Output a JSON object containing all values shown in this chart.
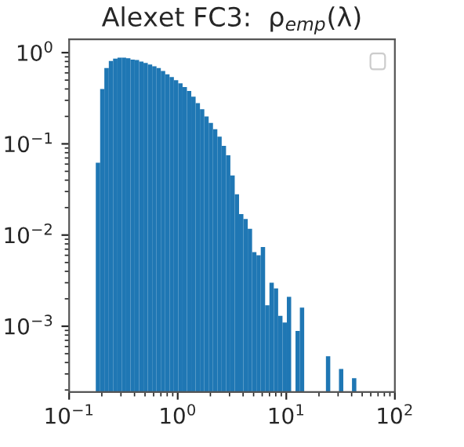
{
  "chart_data": {
    "type": "histogram",
    "title": "Alexet FC3:  ρ$_{emp}$(λ)",
    "bins": [
      0.176,
      0.193,
      0.211,
      0.232,
      0.254,
      0.279,
      0.305,
      0.335,
      0.367,
      0.402,
      0.441,
      0.484,
      0.53,
      0.582,
      0.638,
      0.699,
      0.767,
      0.841,
      0.922,
      1.011,
      1.109,
      1.216,
      1.333,
      1.462,
      1.603,
      1.758,
      1.928,
      2.113,
      2.317,
      2.541,
      2.786,
      3.055,
      3.35,
      3.673,
      4.027,
      4.416,
      4.842,
      5.309,
      5.821,
      6.383,
      6.998,
      7.674,
      8.414,
      9.226,
      10.12,
      11.09,
      12.16,
      13.34,
      14.62,
      16.03,
      17.58,
      19.28,
      21.14,
      23.18,
      25.41,
      27.87,
      30.56,
      33.51,
      36.74,
      40.28,
      44.17
    ],
    "values": [
      0.062,
      0.4,
      0.68,
      0.81,
      0.86,
      0.88,
      0.88,
      0.87,
      0.84,
      0.83,
      0.8,
      0.77,
      0.74,
      0.71,
      0.68,
      0.63,
      0.58,
      0.54,
      0.5,
      0.46,
      0.42,
      0.38,
      0.33,
      0.28,
      0.24,
      0.2,
      0.17,
      0.145,
      0.12,
      0.095,
      0.075,
      0.045,
      0.028,
      0.017,
      0.015,
      0.0117,
      0.0065,
      0.006,
      0.0074,
      0.0017,
      0.003,
      0.0026,
      0.0013,
      0.0011,
      0.0021,
      null,
      0.00089,
      0.0016,
      null,
      null,
      null,
      null,
      null,
      0.00047,
      null,
      null,
      0.00034,
      null,
      null,
      0.00027
    ],
    "color": "#1f77b4",
    "log": "xy",
    "xlim": [
      0.1,
      100
    ],
    "xticks": [
      {
        "value": 0.1,
        "label": "10$^{−1}$"
      },
      {
        "value": 1,
        "label": "10$^{0}$"
      },
      {
        "value": 10,
        "label": "10$^{1}$"
      },
      {
        "value": 100,
        "label": "10$^{2}$"
      }
    ],
    "ylim": [
      0.00019,
      1.4
    ],
    "yticks": [
      {
        "value": 0.001,
        "label": "10$^{−3}$"
      },
      {
        "value": 0.01,
        "label": "10$^{−2}$"
      },
      {
        "value": 0.1,
        "label": "10$^{−1}$"
      },
      {
        "value": 1,
        "label": "10$^{0}$"
      }
    ],
    "grid": false
  }
}
